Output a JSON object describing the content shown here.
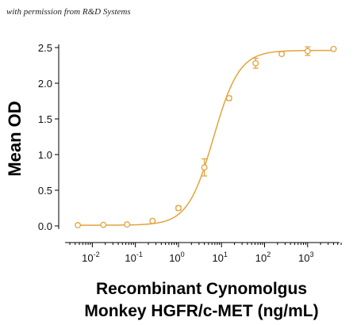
{
  "credit": "with permission from R&D Systems",
  "chart_data": {
    "type": "scatter",
    "xscale": "log",
    "xlim": [
      0.003,
      6000
    ],
    "ylim": [
      -0.1,
      2.6
    ],
    "xticks": [
      {
        "value": 0.01,
        "base": "10",
        "exp": "-2"
      },
      {
        "value": 0.1,
        "base": "10",
        "exp": "-1"
      },
      {
        "value": 1,
        "base": "10",
        "exp": "0"
      },
      {
        "value": 10,
        "base": "10",
        "exp": "1"
      },
      {
        "value": 100,
        "base": "10",
        "exp": "2"
      },
      {
        "value": 1000,
        "base": "10",
        "exp": "3"
      }
    ],
    "yticks": [
      {
        "value": 0.0,
        "label": "0.0"
      },
      {
        "value": 0.5,
        "label": "0.5"
      },
      {
        "value": 1.0,
        "label": "1.0"
      },
      {
        "value": 1.5,
        "label": "1.5"
      },
      {
        "value": 2.0,
        "label": "2.0"
      },
      {
        "value": 2.5,
        "label": "2.5"
      }
    ],
    "ylabel": "Mean OD",
    "xlabel_lines": [
      "Recombinant Cynomolgus",
      "Monkey HGFR/c-MET (ng/mL)"
    ],
    "color": "#e3a33c",
    "grid": false,
    "points": [
      {
        "x": 0.0046,
        "y": 0.01,
        "err": 0
      },
      {
        "x": 0.018,
        "y": 0.015,
        "err": 0
      },
      {
        "x": 0.064,
        "y": 0.02,
        "err": 0
      },
      {
        "x": 0.25,
        "y": 0.07,
        "err": 0.02
      },
      {
        "x": 1.0,
        "y": 0.25,
        "err": 0.03
      },
      {
        "x": 4.0,
        "y": 0.82,
        "err": 0.12
      },
      {
        "x": 15.0,
        "y": 1.79,
        "err": 0.03
      },
      {
        "x": 62.0,
        "y": 2.28,
        "err": 0.07
      },
      {
        "x": 250.0,
        "y": 2.41,
        "err": 0.02
      },
      {
        "x": 1000.0,
        "y": 2.45,
        "err": 0.06
      },
      {
        "x": 4000.0,
        "y": 2.48,
        "err": 0
      }
    ],
    "fit": {
      "bottom": 0.01,
      "top": 2.46,
      "ec50": 6.5,
      "hill": 1.45
    }
  }
}
